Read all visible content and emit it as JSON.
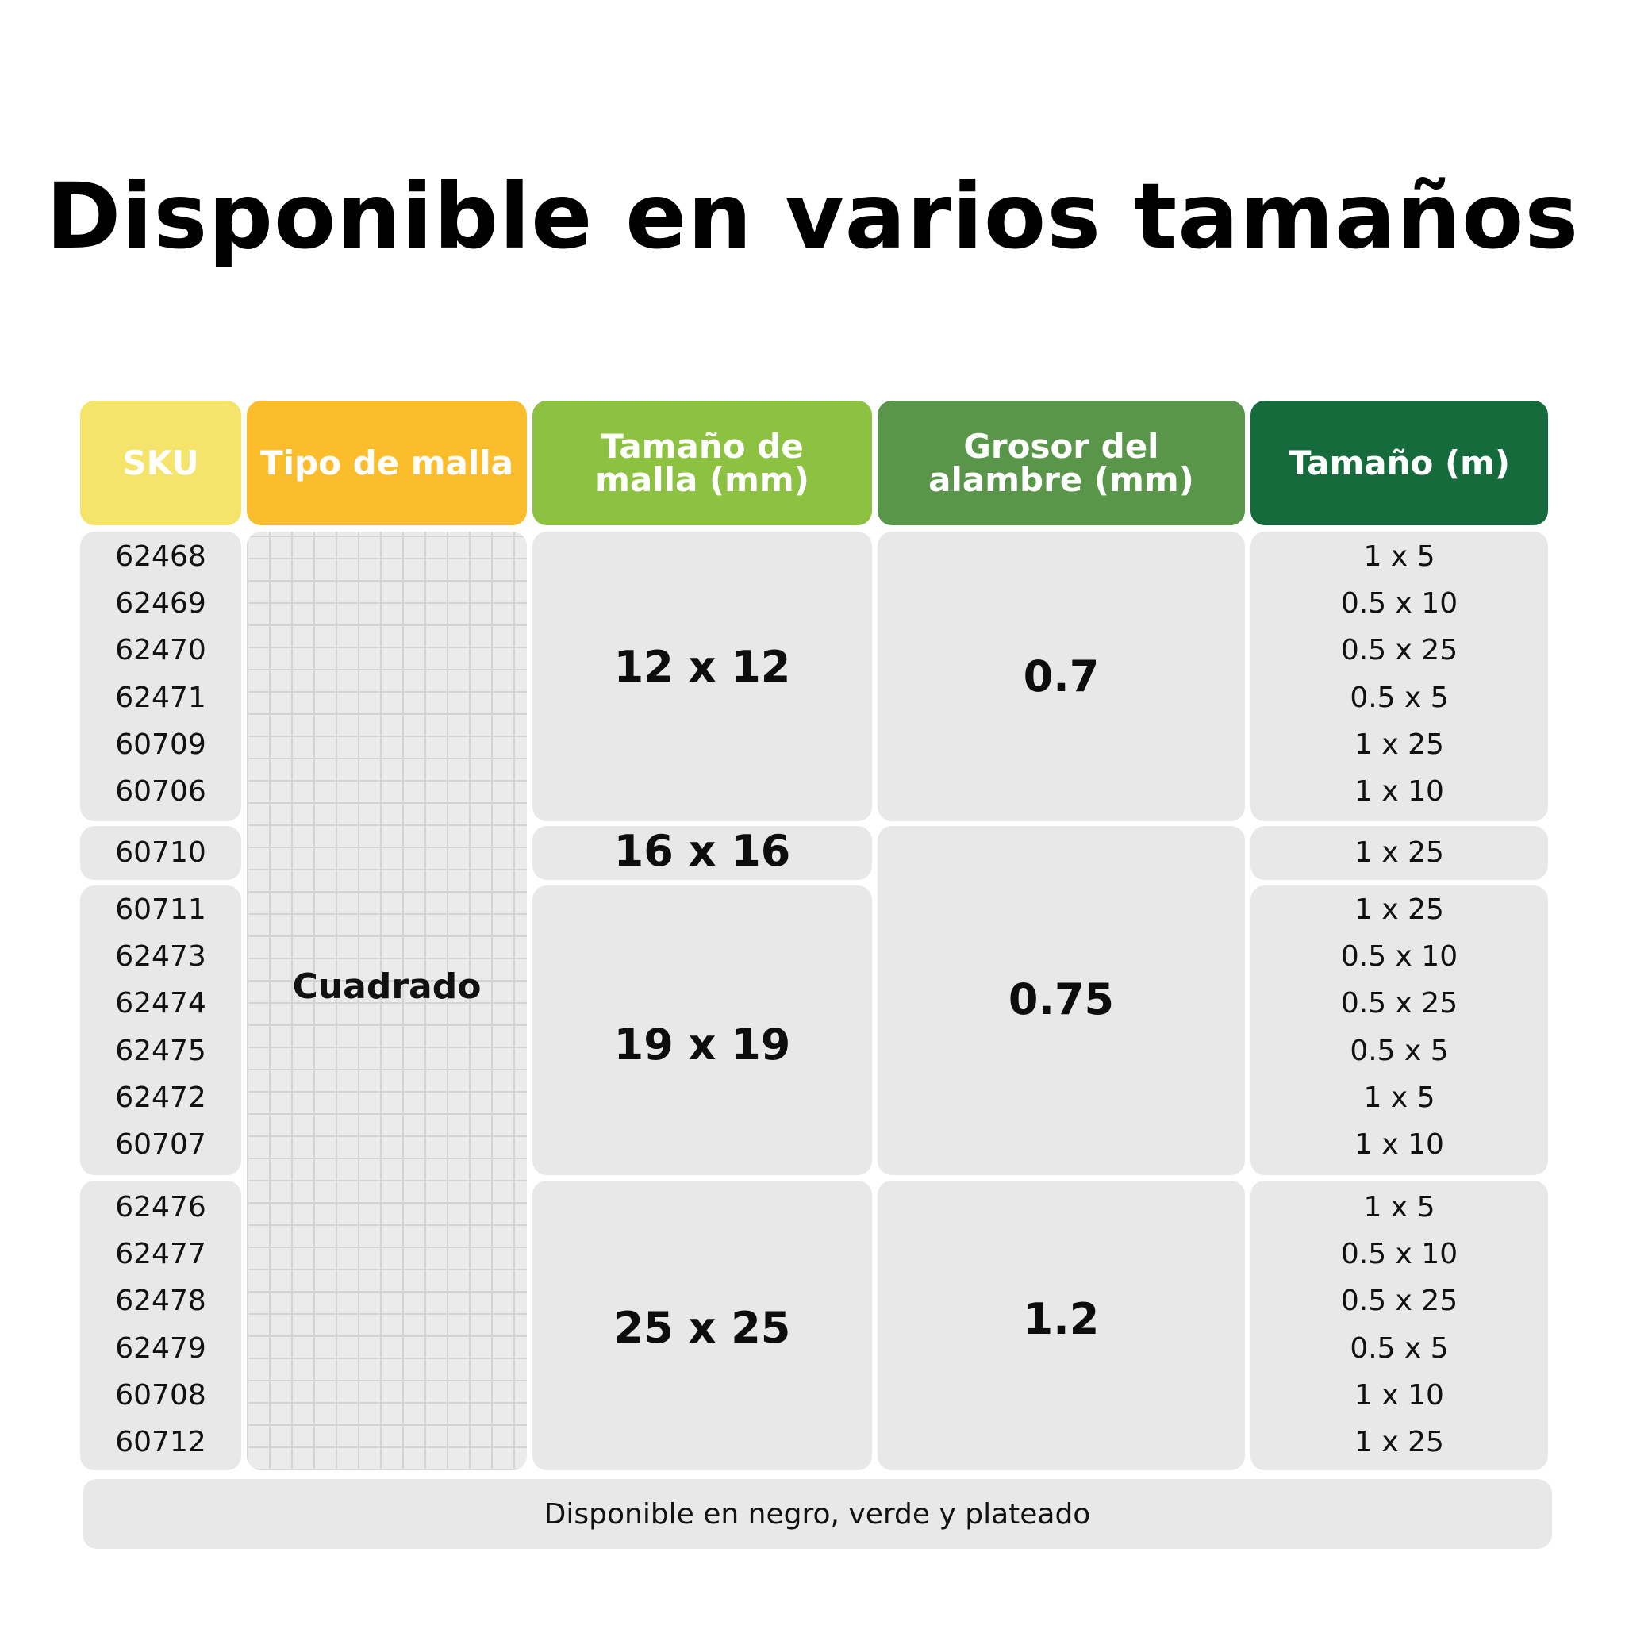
{
  "title": "Disponible en varios tamaños",
  "colors": {
    "sku_header": "#f5e46a",
    "tipo_header": "#fbbd2b",
    "tamano_malla_header": "#8dc141",
    "grosor_header": "#5a9649",
    "tamano_header": "#156b3b",
    "cell_bg": "#e8e8e8"
  },
  "headers": {
    "sku": "SKU",
    "tipo": "Tipo de malla",
    "tamano_malla": [
      "Tamaño de",
      "malla (mm)"
    ],
    "grosor": [
      "Grosor del",
      "alambre (mm)"
    ],
    "tamano": "Tamaño (m)"
  },
  "tipo_de_malla": "Cuadrado",
  "groups": [
    {
      "skus": [
        "62468",
        "62469",
        "62470",
        "62471",
        "60709",
        "60706"
      ],
      "mesh_size": "12 x 12",
      "sizes": [
        "1 x 5",
        "0.5 x 10",
        "0.5 x 25",
        "0.5 x 5",
        "1 x 25",
        "1 x 10"
      ]
    },
    {
      "skus": [
        "60710"
      ],
      "mesh_size": "16 x 16",
      "sizes": [
        "1 x 25"
      ]
    },
    {
      "skus": [
        "60711",
        "62473",
        "62474",
        "62475",
        "62472",
        "60707"
      ],
      "mesh_size": "19 x 19",
      "sizes": [
        "1 x 25",
        "0.5 x 10",
        "0.5 x 25",
        "0.5 x 5",
        "1 x 5",
        "1 x 10"
      ]
    },
    {
      "skus": [
        "62476",
        "62477",
        "62478",
        "62479",
        "60708",
        "60712"
      ],
      "mesh_size": "25 x 25",
      "sizes": [
        "1 x 5",
        "0.5 x 10",
        "0.5 x 25",
        "0.5 x 5",
        "1 x 10",
        "1 x 25"
      ]
    }
  ],
  "wire_thickness": [
    "0.7",
    "0.75",
    "1.2"
  ],
  "footer": "Disponible en negro, verde y plateado"
}
